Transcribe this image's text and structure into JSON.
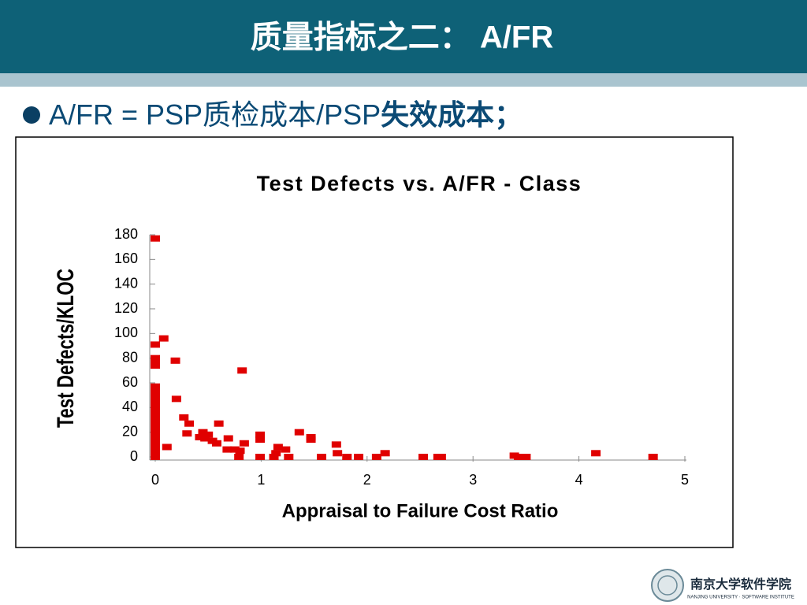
{
  "slide": {
    "title": "质量指标之二： A/FR",
    "bullet": [
      "A/FR = PSP质检成本/PSP",
      "失效成本；"
    ]
  },
  "logo": {
    "text": "南京大学软件学院",
    "subtext": "NANJING UNIVERSITY · SOFTWARE INSTITUTE"
  },
  "chart_data": {
    "type": "scatter",
    "title": "Test Defects vs. A/FR - Class",
    "x_label": "Appraisal to Failure Cost Ratio",
    "y_label": "Test Defects/KLOC",
    "color": "#e00000",
    "x": [
      0,
      0,
      0,
      0,
      0,
      0,
      0,
      0,
      0,
      0,
      0,
      0,
      0,
      0,
      0,
      0,
      0,
      0,
      0,
      0,
      0,
      0,
      0,
      0,
      0,
      0,
      0,
      0,
      0.08,
      0.19,
      0.11,
      0.2,
      0.27,
      0.32,
      0.3,
      0.42,
      0.45,
      0.47,
      0.5,
      0.54,
      0.58,
      0.6,
      0.69,
      0.68,
      0.75,
      0.79,
      0.8,
      0.82,
      0.84,
      0.99,
      0.99,
      0.99,
      1.12,
      1.14,
      1.16,
      1.23,
      1.26,
      1.36,
      1.47,
      1.47,
      1.57,
      1.71,
      1.72,
      1.81,
      1.92,
      2.09,
      2.17,
      2.53,
      2.67,
      2.7,
      3.39,
      3.43,
      3.5,
      4.16,
      4.7
    ],
    "values": [
      177,
      91,
      80,
      77,
      74,
      57,
      55,
      52,
      50,
      47,
      45,
      42,
      40,
      37,
      35,
      32,
      30,
      27,
      25,
      22,
      20,
      17,
      15,
      12,
      10,
      7,
      5,
      0,
      96,
      78,
      8,
      47,
      32,
      27,
      19,
      16,
      20,
      15,
      18,
      13,
      11,
      27,
      15,
      6,
      6,
      0,
      5,
      70,
      11,
      18,
      14,
      0,
      0,
      3,
      8,
      6,
      0,
      20,
      16,
      14,
      0,
      10,
      3,
      0,
      0,
      0,
      3,
      0,
      0,
      0,
      1,
      0,
      0,
      3,
      0
    ],
    "xlim": [
      0,
      5
    ],
    "ylim": [
      0,
      180
    ],
    "xticks": [
      0,
      1,
      2,
      3,
      4,
      5
    ],
    "yticks": [
      0,
      20,
      40,
      60,
      80,
      100,
      120,
      140,
      160,
      180
    ]
  }
}
